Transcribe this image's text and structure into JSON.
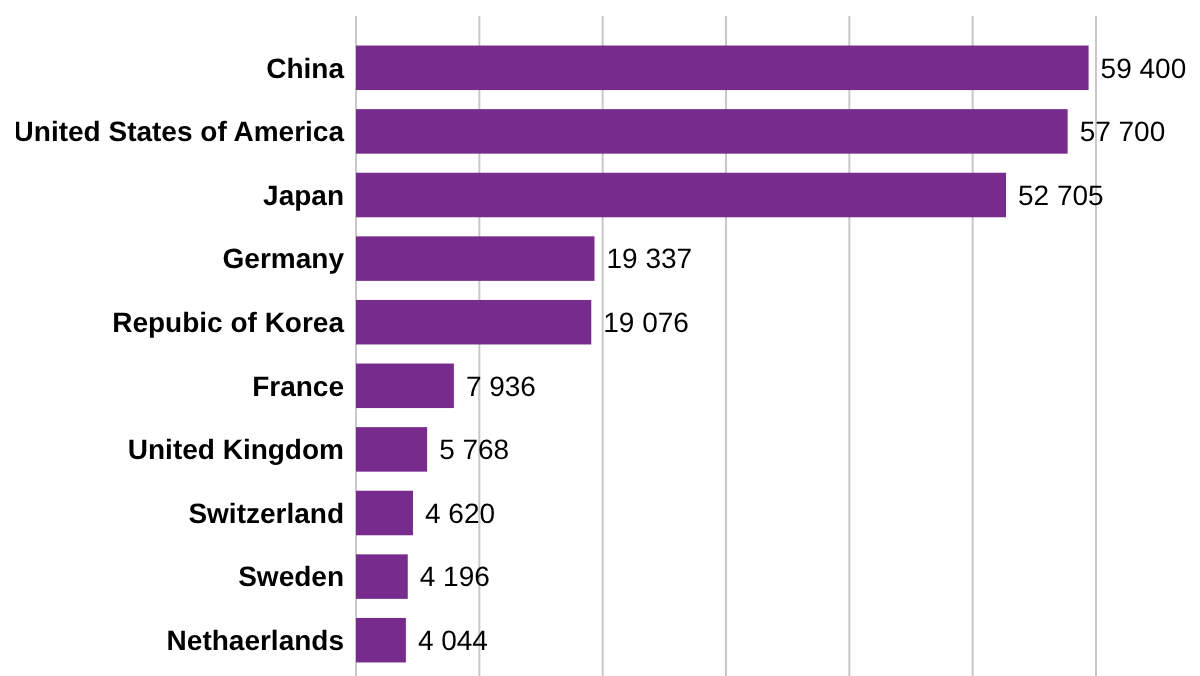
{
  "chart_data": {
    "type": "bar",
    "orientation": "horizontal",
    "categories": [
      "China",
      "United States of America",
      "Japan",
      "Germany",
      "Repubic of Korea",
      "France",
      "United Kingdom",
      "Switzerland",
      "Sweden",
      "Nethaerlands"
    ],
    "values": [
      59400,
      57700,
      52705,
      19337,
      19076,
      7936,
      5768,
      4620,
      4196,
      4044
    ],
    "value_labels": [
      "59 400",
      "57 700",
      "52 705",
      "19 337",
      "19 076",
      "7 936",
      "5 768",
      "4 620",
      "4 196",
      "4 044"
    ],
    "color": "#772b8c",
    "xlim": [
      0,
      60000
    ],
    "xticks": [
      {
        "value": 0,
        "label": null
      },
      {
        "value": 10000,
        "label": null
      },
      {
        "value": 20000,
        "label": null
      },
      {
        "value": 30000,
        "label": null
      },
      {
        "value": 40000,
        "label": null
      },
      {
        "value": 50000,
        "label": null
      },
      {
        "value": 60000,
        "label": null
      }
    ],
    "grid": "x",
    "tick_labels": "y"
  }
}
